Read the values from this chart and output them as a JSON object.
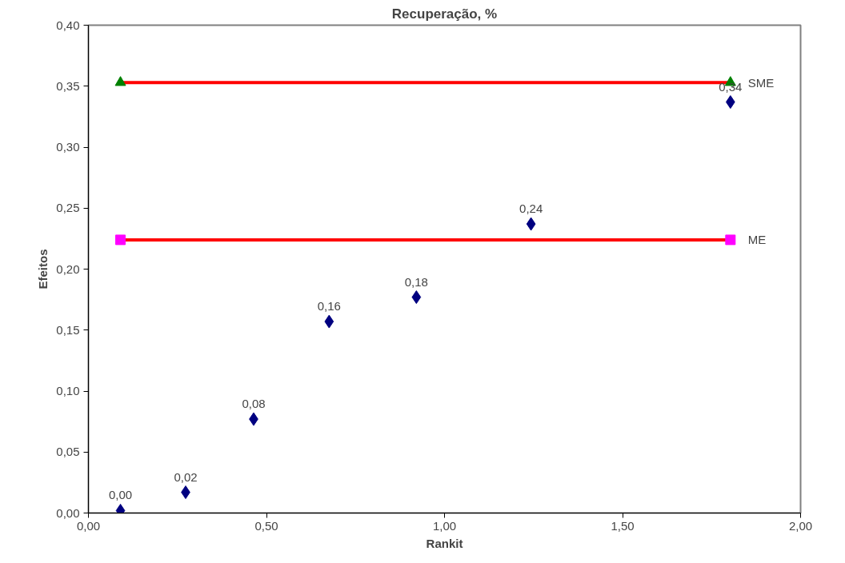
{
  "chart_data": {
    "type": "scatter",
    "title": "Recuperação, %",
    "xlabel": "Rankit",
    "ylabel": "Efeitos",
    "xlim": [
      0,
      2
    ],
    "xticks": [
      {
        "value": 0,
        "label": "0,00"
      },
      {
        "value": 0.5,
        "label": "0,50"
      },
      {
        "value": 1,
        "label": "1,00"
      },
      {
        "value": 1.5,
        "label": "1,50"
      },
      {
        "value": 2,
        "label": "2,00"
      }
    ],
    "ylim": [
      0,
      0.4
    ],
    "yticks": [
      {
        "value": 0,
        "label": "0,00"
      },
      {
        "value": 0.05,
        "label": "0,05"
      },
      {
        "value": 0.1,
        "label": "0,10"
      },
      {
        "value": 0.15,
        "label": "0,15"
      },
      {
        "value": 0.2,
        "label": "0,20"
      },
      {
        "value": 0.25,
        "label": "0,25"
      },
      {
        "value": 0.3,
        "label": "0,30"
      },
      {
        "value": 0.35,
        "label": "0,35"
      },
      {
        "value": 0.4,
        "label": "0,40"
      }
    ],
    "grid": false,
    "series": [
      {
        "marker": "diamond",
        "color": "#000080",
        "x": [
          0.09,
          0.273,
          0.464,
          0.676,
          0.921,
          1.243,
          1.803
        ],
        "values": [
          0.002,
          0.017,
          0.077,
          0.157,
          0.177,
          0.237,
          0.337
        ],
        "value_labels": [
          "0,00",
          "0,02",
          "0,08",
          "0,16",
          "0,18",
          "0,24",
          "0,34"
        ]
      },
      {
        "type": "line",
        "name": "SME",
        "marker": "triangle",
        "color": "#ff0000",
        "colors": [
          "#008000",
          "#008000"
        ],
        "x": [
          0.09,
          1.803
        ],
        "values": [
          0.353,
          0.353
        ]
      },
      {
        "type": "line",
        "name": "ME",
        "marker": "square",
        "color": "#ff0000",
        "colors": [
          "#ff00ff",
          "#ff00ff"
        ],
        "x": [
          0.09,
          1.803
        ],
        "values": [
          0.224,
          0.224
        ]
      }
    ]
  }
}
